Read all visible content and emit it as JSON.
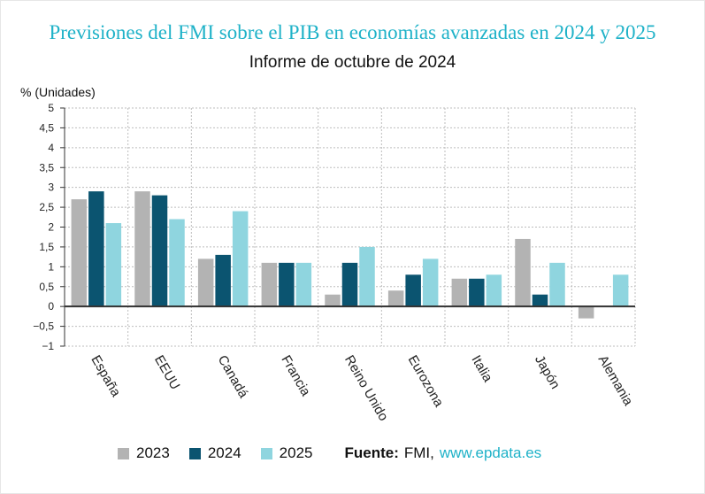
{
  "chart_data": {
    "type": "bar",
    "title": "Previsiones del FMI sobre el PIB en economías avanzadas en 2024 y 2025",
    "subtitle": "Informe de octubre de 2024",
    "ylabel": "% (Unidades)",
    "ylim": [
      -1,
      5
    ],
    "yticks": [
      "5",
      "4,5",
      "4",
      "3,5",
      "3",
      "2,5",
      "2",
      "1,5",
      "1",
      "0,5",
      "0",
      "-0,5",
      "-1"
    ],
    "grid": true,
    "categories": [
      "España",
      "EEUU",
      "Canadá",
      "Francia",
      "Reino Unido",
      "Eurozona",
      "Italia",
      "Japón",
      "Alemania"
    ],
    "series": [
      {
        "name": "2023",
        "color": "#b3b3b3",
        "values": [
          2.7,
          2.9,
          1.2,
          1.1,
          0.3,
          0.4,
          0.7,
          1.7,
          -0.3
        ]
      },
      {
        "name": "2024",
        "color": "#0b5470",
        "values": [
          2.9,
          2.8,
          1.3,
          1.1,
          1.1,
          0.8,
          0.7,
          0.3,
          0.0
        ]
      },
      {
        "name": "2025",
        "color": "#8fd5df",
        "values": [
          2.1,
          2.2,
          2.4,
          1.1,
          1.5,
          1.2,
          0.8,
          1.1,
          0.8
        ]
      }
    ]
  },
  "source": {
    "label": "Fuente:",
    "name": "FMI,",
    "link": "www.epdata.es"
  }
}
